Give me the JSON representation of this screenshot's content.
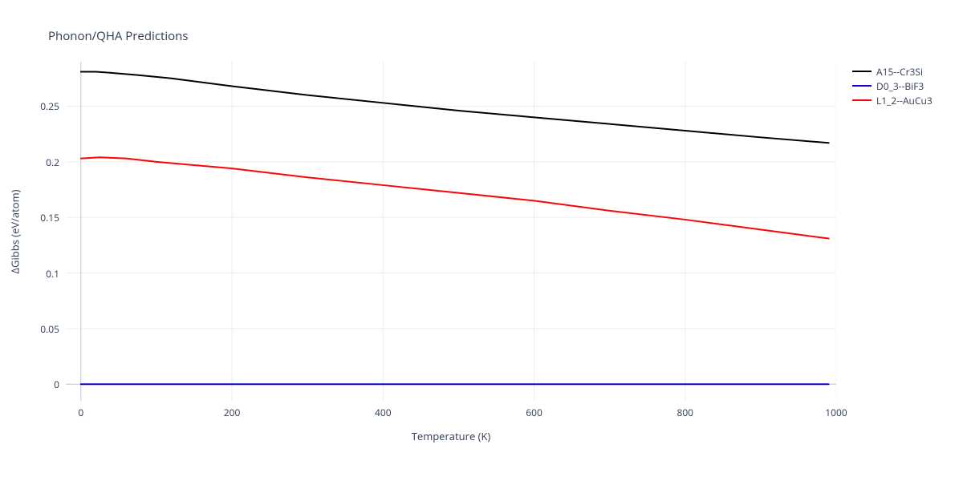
{
  "title": "Phonon/QHA Predictions",
  "chart": {
    "type": "line",
    "background_color": "#ffffff",
    "zeroline_color": "#c4c9d4",
    "grid_color": "#ebedf2",
    "outer_border_color": "#ffffff",
    "x": {
      "label": "Temperature (K)",
      "min": -20,
      "max": 1000,
      "ticks": [
        0,
        200,
        400,
        600,
        800,
        1000
      ],
      "gridlines": [
        0,
        200,
        400,
        600,
        800,
        1000
      ]
    },
    "y": {
      "label": "ΔGibbs (eV/atom)",
      "min": -0.015,
      "max": 0.29,
      "ticks": [
        0,
        0.05,
        0.1,
        0.15,
        0.2,
        0.25
      ],
      "gridlines": [
        0,
        0.05,
        0.1,
        0.15,
        0.2,
        0.25
      ]
    },
    "label_fontsize": 13,
    "tick_fontsize": 12,
    "line_width": 2,
    "series": [
      {
        "name": "A15--Cr3Si",
        "color": "#000000",
        "points": [
          [
            0,
            0.281
          ],
          [
            20,
            0.281
          ],
          [
            40,
            0.28
          ],
          [
            75,
            0.278
          ],
          [
            120,
            0.275
          ],
          [
            200,
            0.268
          ],
          [
            300,
            0.26
          ],
          [
            400,
            0.253
          ],
          [
            500,
            0.246
          ],
          [
            600,
            0.24
          ],
          [
            700,
            0.234
          ],
          [
            800,
            0.228
          ],
          [
            900,
            0.222
          ],
          [
            990,
            0.217
          ]
        ]
      },
      {
        "name": "D0_3--BiF3",
        "color": "#1000d6",
        "points": [
          [
            0,
            0.0
          ],
          [
            100,
            0.0
          ],
          [
            200,
            0.0
          ],
          [
            300,
            0.0
          ],
          [
            400,
            0.0
          ],
          [
            500,
            0.0
          ],
          [
            600,
            0.0
          ],
          [
            700,
            0.0
          ],
          [
            800,
            0.0
          ],
          [
            900,
            0.0
          ],
          [
            990,
            0.0
          ]
        ]
      },
      {
        "name": "L1_2--AuCu3",
        "color": "#fa0505",
        "points": [
          [
            0,
            0.203
          ],
          [
            25,
            0.204
          ],
          [
            60,
            0.203
          ],
          [
            100,
            0.2
          ],
          [
            150,
            0.197
          ],
          [
            200,
            0.194
          ],
          [
            300,
            0.186
          ],
          [
            400,
            0.179
          ],
          [
            500,
            0.172
          ],
          [
            600,
            0.165
          ],
          [
            700,
            0.156
          ],
          [
            800,
            0.148
          ],
          [
            900,
            0.139
          ],
          [
            990,
            0.131
          ]
        ]
      }
    ]
  },
  "legend": {
    "items": [
      {
        "label": "A15--Cr3Si",
        "color": "#000000"
      },
      {
        "label": "D0_3--BiF3",
        "color": "#1000d6"
      },
      {
        "label": "L1_2--AuCu3",
        "color": "#fa0505"
      }
    ]
  }
}
